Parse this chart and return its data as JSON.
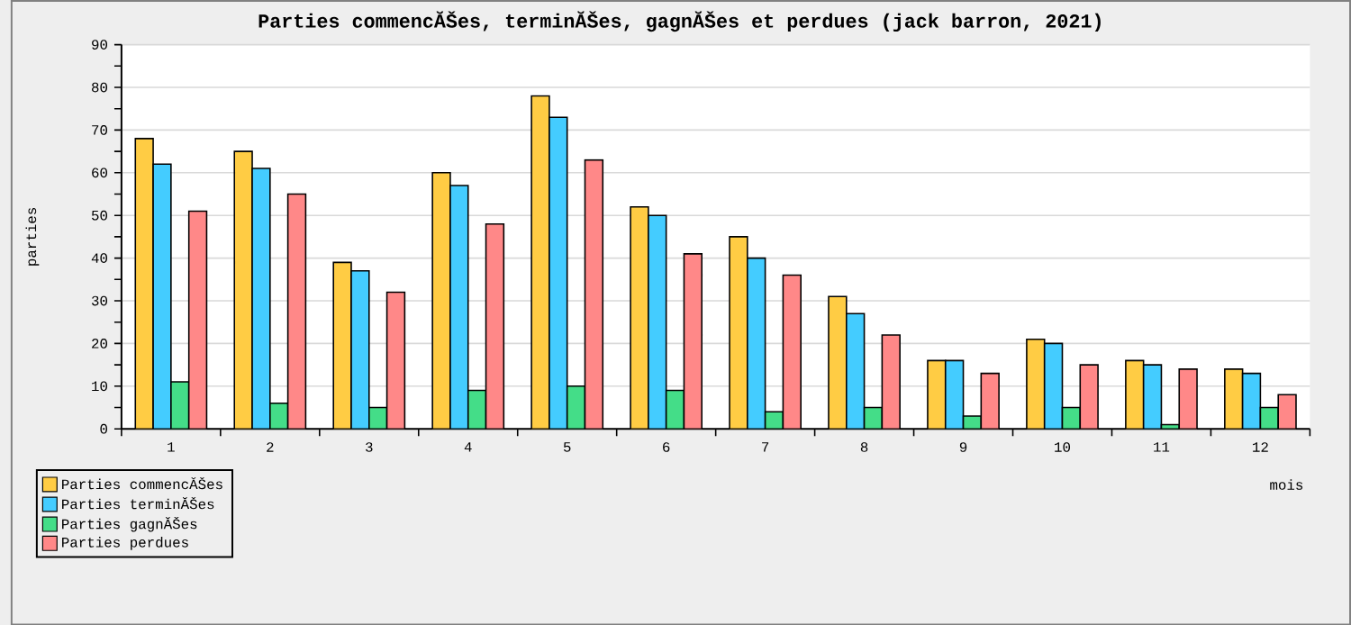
{
  "chart_data": {
    "type": "bar",
    "title": "Parties commencĂŠes, terminĂŠes, gagnĂŠes et perdues (jack barron, 2021)",
    "xlabel": "mois",
    "ylabel": "parties",
    "categories": [
      "1",
      "2",
      "3",
      "4",
      "5",
      "6",
      "7",
      "8",
      "9",
      "10",
      "11",
      "12"
    ],
    "series": [
      {
        "name": "Parties commencĂŠes",
        "color": "#ffcc44",
        "values": [
          68,
          65,
          39,
          60,
          78,
          52,
          45,
          31,
          16,
          21,
          16,
          14
        ]
      },
      {
        "name": "Parties terminĂŠes",
        "color": "#44ccff",
        "values": [
          62,
          61,
          37,
          57,
          73,
          50,
          40,
          27,
          16,
          20,
          15,
          13
        ]
      },
      {
        "name": "Parties gagnĂŠes",
        "color": "#44dd88",
        "values": [
          11,
          6,
          5,
          9,
          10,
          9,
          4,
          5,
          3,
          5,
          1,
          5
        ]
      },
      {
        "name": "Parties perdues",
        "color": "#ff8888",
        "values": [
          51,
          55,
          32,
          48,
          63,
          41,
          36,
          22,
          13,
          15,
          14,
          8
        ]
      }
    ],
    "ylim": [
      0,
      90
    ],
    "yticks": [
      0,
      10,
      20,
      30,
      40,
      50,
      60,
      70,
      80,
      90
    ],
    "grid": "y",
    "legend": "bottom left"
  }
}
